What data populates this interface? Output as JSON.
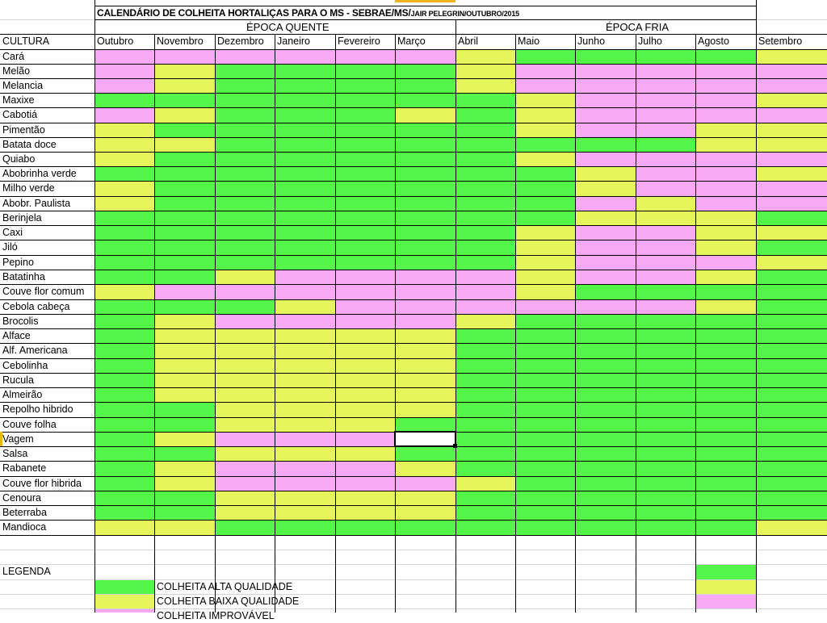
{
  "sheet": {
    "title_main": "CALENDÁRIO DE COLHEITA HORTALIÇAS PARA O MS - SEBRAE/MS/",
    "title_author": "JAIR PELEGRIN/OUTUBRO/2015",
    "season_hot": "ÉPOCA QUENTE",
    "season_cold": "ÉPOCA FRIA",
    "culture_header": "CULTURA",
    "months": [
      "Outubro",
      "Novembro",
      "Dezembro",
      "Janeiro",
      "Fevereiro",
      "Março",
      "Abril",
      "Maio",
      "Junho",
      "Julho",
      "Agosto",
      "Setembro"
    ],
    "colors": {
      "G": "#55f54a",
      "Y": "#e5f55a",
      "P": "#f8a9f5"
    },
    "crops": [
      {
        "name": "Cará",
        "codes": "PPPPPPYGGGGY"
      },
      {
        "name": "Melão",
        "codes": "PYGGGGYPPPPP"
      },
      {
        "name": "Melancia",
        "codes": "PYGGGGYPPPPP"
      },
      {
        "name": "Maxixe",
        "codes": "GGGGGGGYPPPY"
      },
      {
        "name": "Cabotiá",
        "codes": "PYGGGYGYPPPP"
      },
      {
        "name": "Pimentão",
        "codes": "YGGGGGGYPPYY"
      },
      {
        "name": "Batata doce",
        "codes": "YYGGGGGGGGYY"
      },
      {
        "name": "Quiabo",
        "codes": "YGGGGGGYPPPP"
      },
      {
        "name": "Abobrinha verde",
        "codes": "GGGGGGGGYPPY"
      },
      {
        "name": "Milho verde",
        "codes": "YGGGGGGGYPPP"
      },
      {
        "name": "Abobr. Paulista",
        "codes": "YGGGGGGGPYPP"
      },
      {
        "name": "Berinjela",
        "codes": "GGGGGGGGYYYG"
      },
      {
        "name": "Caxi",
        "codes": "GGGGGGGYPPYY"
      },
      {
        "name": "Jiló",
        "codes": "GGGGGGGYPPYG"
      },
      {
        "name": "Pepino",
        "codes": "GGGGGGGYPPPY"
      },
      {
        "name": "Batatinha",
        "codes": "GGYPPPPYPPYG"
      },
      {
        "name": "Couve flor comum",
        "codes": "YPPPPPPYGGGG"
      },
      {
        "name": "Cebola cabeça",
        "codes": "GGGYPPPPPPYG"
      },
      {
        "name": "Brocolis",
        "codes": "GYPPPPYGGGGG"
      },
      {
        "name": "Alface",
        "codes": "GYYYYYGGGGGG"
      },
      {
        "name": "Alf. Americana",
        "codes": "GYYYYYGGGGGG"
      },
      {
        "name": "Cebolinha",
        "codes": "GYYYYYGGGGGG"
      },
      {
        "name": "Rucula",
        "codes": "GYYYYYGGGGGG"
      },
      {
        "name": "Almeirão",
        "codes": "GYYYYYGGGGGG"
      },
      {
        "name": "Repolho hibrido",
        "codes": "GGYYYYGGGGGG"
      },
      {
        "name": "Couve folha",
        "codes": "GGYYYGGGGGGG"
      },
      {
        "name": "Vagem",
        "codes": "GYPPPWGGGGGG"
      },
      {
        "name": "Salsa",
        "codes": "GGYYYGGGGGGG"
      },
      {
        "name": "Rabanete",
        "codes": "GYPPPYGGGGGG"
      },
      {
        "name": "Couve flor hibrida",
        "codes": "GYPPPPYGGGGG"
      },
      {
        "name": "Cenoura",
        "codes": "GGYYYYGGGGGG"
      },
      {
        "name": "Beterraba",
        "codes": "GGYYYYGGGGGG"
      },
      {
        "name": "Mandioca",
        "codes": "YYGGGGGGGGGY"
      }
    ],
    "legend_title": "LEGENDA",
    "legend": [
      {
        "code": "G",
        "label": "COLHEITA ALTA QUALIDADE"
      },
      {
        "code": "Y",
        "label": "COLHEITA BAIXA QUALIDADE"
      },
      {
        "code": "P",
        "label": "COLHEITA IMPROVÁVEL"
      }
    ]
  }
}
